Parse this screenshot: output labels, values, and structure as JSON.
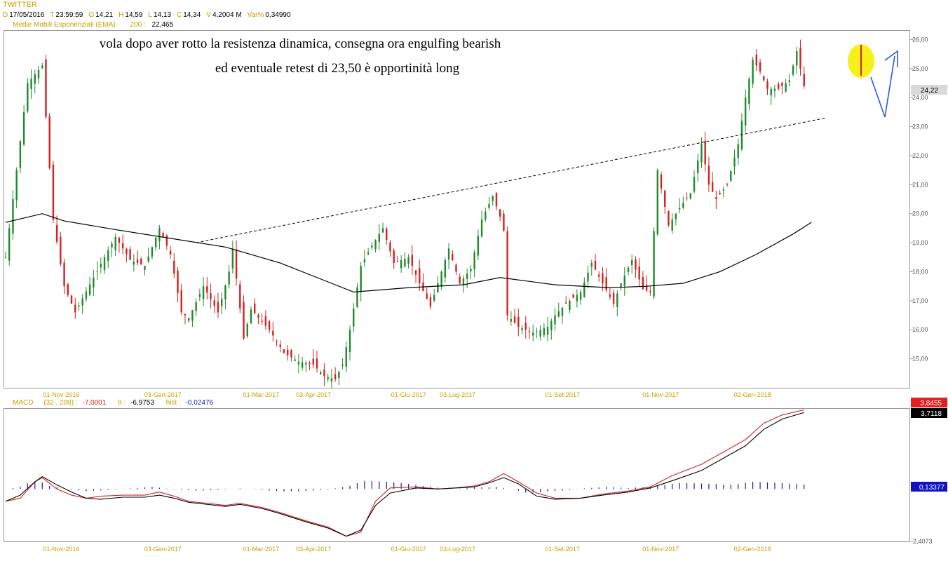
{
  "colors": {
    "background": "#ffffff",
    "candle_up": "#1f8a2e",
    "candle_down": "#d42020",
    "ema": "#000000",
    "trendline": "#000000",
    "header_label": "#c8a000",
    "value_text": "#000000",
    "macd_line": "#000000",
    "signal_line": "#d42020",
    "histogram": "#1a1aa6",
    "highlight_circle": "#f5f000",
    "arrow": "#2a5bd7",
    "price_badge_bg": "#d9d9d9",
    "macd_badge_red": "#e22020",
    "macd_badge_black": "#000000",
    "macd_badge_blue": "#1010c8"
  },
  "header": {
    "symbol": "TWITTER",
    "fields": [
      {
        "key": "D",
        "value": "17/05/2016"
      },
      {
        "key": "T",
        "value": "23:59:59"
      },
      {
        "key": "O",
        "value": "14,21"
      },
      {
        "key": "H",
        "value": "14,59"
      },
      {
        "key": "L",
        "value": "14,13"
      },
      {
        "key": "C",
        "value": "14,34"
      },
      {
        "key": "V",
        "value": "4,2004 M"
      },
      {
        "key": "Var%",
        "value": "0,34990"
      }
    ],
    "indicator_label": "Medie Mobili Esponenziali (EMA)",
    "indicator_period": "200 :",
    "indicator_value": "22,465"
  },
  "annotation": {
    "line1": "vola dopo aver rotto la resistenza dinamica, consegna ora engulfing bearish",
    "line2": "ed eventuale retest di 23,50 è opportinità long"
  },
  "chart_data": [
    {
      "type": "candlestick",
      "title": "",
      "y_ticks": [
        "15,00",
        "16,00",
        "17,00",
        "18,00",
        "19,00",
        "20,00",
        "21,00",
        "22,00",
        "23,00",
        "24,00",
        "25,00",
        "26,00"
      ],
      "ylim": [
        14.0,
        26.3
      ],
      "x_ticks": [
        "01-Nov-2016",
        "03-Gen-2017",
        "01-Mar-2017",
        "03-Apr-2017",
        "01-Giu-2017",
        "03-Lug-2017",
        "01-Set-2017",
        "01-Nov-2017",
        "02-Gen-2018"
      ],
      "last_price_label": "24,22",
      "price_path": [
        [
          0,
          18.5
        ],
        [
          6,
          24.5
        ],
        [
          10,
          25.1
        ],
        [
          13,
          19.8
        ],
        [
          16,
          17.5
        ],
        [
          19,
          16.6
        ],
        [
          24,
          17.8
        ],
        [
          30,
          19.2
        ],
        [
          34,
          18.4
        ],
        [
          38,
          18.2
        ],
        [
          42,
          19.5
        ],
        [
          45,
          18.6
        ],
        [
          48,
          16.6
        ],
        [
          50,
          16.4
        ],
        [
          54,
          17.5
        ],
        [
          58,
          16.6
        ],
        [
          61,
          18.0
        ],
        [
          62,
          18.8
        ],
        [
          65,
          15.7
        ],
        [
          67,
          16.7
        ],
        [
          72,
          16.0
        ],
        [
          76,
          15.2
        ],
        [
          80,
          14.9
        ],
        [
          84,
          14.8
        ],
        [
          87,
          14.4
        ],
        [
          90,
          14.3
        ],
        [
          92,
          14.8
        ],
        [
          94,
          16.0
        ],
        [
          97,
          18.2
        ],
        [
          100,
          18.9
        ],
        [
          103,
          19.5
        ],
        [
          106,
          18.3
        ],
        [
          110,
          18.5
        ],
        [
          113,
          17.6
        ],
        [
          116,
          16.8
        ],
        [
          119,
          18.0
        ],
        [
          121,
          18.8
        ],
        [
          124,
          17.6
        ],
        [
          127,
          18.1
        ],
        [
          130,
          19.8
        ],
        [
          133,
          20.6
        ],
        [
          135,
          19.9
        ],
        [
          136,
          19.4
        ],
        [
          137,
          16.5
        ],
        [
          140,
          16.1
        ],
        [
          144,
          15.9
        ],
        [
          148,
          16.1
        ],
        [
          150,
          16.5
        ],
        [
          153,
          16.9
        ],
        [
          157,
          17.3
        ],
        [
          160,
          18.3
        ],
        [
          163,
          17.6
        ],
        [
          166,
          16.9
        ],
        [
          168,
          17.6
        ],
        [
          171,
          18.4
        ],
        [
          174,
          17.4
        ],
        [
          176,
          17.3
        ],
        [
          178,
          21.5
        ],
        [
          181,
          19.6
        ],
        [
          184,
          20.2
        ],
        [
          187,
          20.7
        ],
        [
          190,
          22.4
        ],
        [
          192,
          21.0
        ],
        [
          194,
          20.5
        ],
        [
          197,
          21.0
        ],
        [
          200,
          22.4
        ],
        [
          202,
          24.0
        ],
        [
          204,
          25.3
        ],
        [
          206,
          24.9
        ],
        [
          208,
          24.3
        ],
        [
          211,
          24.3
        ],
        [
          214,
          24.6
        ],
        [
          216,
          25.6
        ],
        [
          218,
          24.4
        ]
      ],
      "ema200_path": [
        [
          0,
          19.7
        ],
        [
          5,
          19.85
        ],
        [
          10,
          20.0
        ],
        [
          16,
          19.75
        ],
        [
          30,
          19.45
        ],
        [
          45,
          19.15
        ],
        [
          60,
          18.85
        ],
        [
          75,
          18.3
        ],
        [
          85,
          17.8
        ],
        [
          95,
          17.3
        ],
        [
          110,
          17.45
        ],
        [
          125,
          17.55
        ],
        [
          135,
          17.8
        ],
        [
          150,
          17.55
        ],
        [
          165,
          17.45
        ],
        [
          175,
          17.5
        ],
        [
          185,
          17.6
        ],
        [
          195,
          18.0
        ],
        [
          205,
          18.6
        ],
        [
          215,
          19.3
        ],
        [
          220,
          19.7
        ]
      ],
      "trendline": [
        [
          52,
          19.0
        ],
        [
          224,
          23.3
        ]
      ]
    },
    {
      "type": "line",
      "title": "",
      "label": "MACD",
      "params": "(32 , 200) :",
      "macd_value": "-7,0001",
      "signal_period": "9 :",
      "signal_value": "-6,9753",
      "hist_label": "hist :",
      "hist_value": "-0,02476",
      "badge_red": "3,8455",
      "badge_black": "3,7118",
      "badge_blue": "0,13377",
      "y_tick_bottom": "-2,4073",
      "ylim": [
        -2.55,
        3.9
      ],
      "x_ticks": [
        "01-Nov-2016",
        "03-Gen-2017",
        "01-Mar-2017",
        "03-Apr-2017",
        "01-Giu-2017",
        "03-Lug-2017",
        "01-Set-2017",
        "01-Nov-2017",
        "02-Gen-2018"
      ],
      "macd_path": [
        [
          0,
          -0.6
        ],
        [
          4,
          -0.3
        ],
        [
          8,
          0.35
        ],
        [
          10,
          0.6
        ],
        [
          14,
          0.2
        ],
        [
          18,
          -0.15
        ],
        [
          22,
          -0.45
        ],
        [
          26,
          -0.5
        ],
        [
          32,
          -0.4
        ],
        [
          38,
          -0.4
        ],
        [
          42,
          -0.3
        ],
        [
          46,
          -0.45
        ],
        [
          50,
          -0.65
        ],
        [
          55,
          -0.75
        ],
        [
          60,
          -0.85
        ],
        [
          64,
          -0.75
        ],
        [
          70,
          -0.95
        ],
        [
          75,
          -1.2
        ],
        [
          82,
          -1.6
        ],
        [
          88,
          -1.9
        ],
        [
          93,
          -2.3
        ],
        [
          97,
          -2.0
        ],
        [
          101,
          -0.8
        ],
        [
          105,
          -0.2
        ],
        [
          112,
          0.05
        ],
        [
          118,
          0.0
        ],
        [
          123,
          0.05
        ],
        [
          128,
          0.1
        ],
        [
          132,
          0.3
        ],
        [
          136,
          0.55
        ],
        [
          140,
          0.25
        ],
        [
          145,
          -0.35
        ],
        [
          150,
          -0.5
        ],
        [
          157,
          -0.45
        ],
        [
          163,
          -0.3
        ],
        [
          170,
          -0.15
        ],
        [
          176,
          0.05
        ],
        [
          182,
          0.4
        ],
        [
          190,
          0.9
        ],
        [
          197,
          1.6
        ],
        [
          202,
          2.1
        ],
        [
          207,
          2.9
        ],
        [
          212,
          3.4
        ],
        [
          218,
          3.72
        ]
      ],
      "signal_path": [
        [
          0,
          -0.6
        ],
        [
          4,
          -0.45
        ],
        [
          8,
          0.35
        ],
        [
          10,
          0.55
        ],
        [
          14,
          0.0
        ],
        [
          18,
          -0.3
        ],
        [
          22,
          -0.45
        ],
        [
          26,
          -0.35
        ],
        [
          32,
          -0.3
        ],
        [
          38,
          -0.3
        ],
        [
          42,
          -0.15
        ],
        [
          46,
          -0.35
        ],
        [
          50,
          -0.6
        ],
        [
          55,
          -0.7
        ],
        [
          60,
          -0.8
        ],
        [
          64,
          -0.7
        ],
        [
          70,
          -0.9
        ],
        [
          75,
          -1.15
        ],
        [
          82,
          -1.55
        ],
        [
          88,
          -1.85
        ],
        [
          93,
          -2.3
        ],
        [
          97,
          -2.1
        ],
        [
          101,
          -0.6
        ],
        [
          105,
          0.05
        ],
        [
          112,
          0.1
        ],
        [
          118,
          0.0
        ],
        [
          123,
          0.05
        ],
        [
          128,
          0.15
        ],
        [
          132,
          0.35
        ],
        [
          136,
          0.75
        ],
        [
          140,
          0.35
        ],
        [
          145,
          -0.2
        ],
        [
          150,
          -0.45
        ],
        [
          157,
          -0.45
        ],
        [
          163,
          -0.25
        ],
        [
          170,
          -0.1
        ],
        [
          176,
          0.1
        ],
        [
          182,
          0.65
        ],
        [
          190,
          1.2
        ],
        [
          197,
          1.9
        ],
        [
          202,
          2.4
        ],
        [
          207,
          3.2
        ],
        [
          212,
          3.6
        ],
        [
          218,
          3.85
        ]
      ],
      "histogram_path": [
        [
          0,
          0.0
        ],
        [
          4,
          0.1
        ],
        [
          7,
          0.35
        ],
        [
          9,
          0.4
        ],
        [
          12,
          0.15
        ],
        [
          16,
          0.0
        ],
        [
          22,
          -0.1
        ],
        [
          28,
          -0.05
        ],
        [
          34,
          0.03
        ],
        [
          40,
          0.1
        ],
        [
          46,
          -0.02
        ],
        [
          52,
          -0.08
        ],
        [
          58,
          -0.05
        ],
        [
          64,
          0.03
        ],
        [
          70,
          -0.05
        ],
        [
          76,
          -0.12
        ],
        [
          82,
          -0.1
        ],
        [
          88,
          -0.03
        ],
        [
          94,
          0.15
        ],
        [
          98,
          0.4
        ],
        [
          104,
          0.35
        ],
        [
          110,
          0.25
        ],
        [
          116,
          0.1
        ],
        [
          122,
          0.0
        ],
        [
          128,
          0.08
        ],
        [
          134,
          0.1
        ],
        [
          138,
          0.0
        ],
        [
          142,
          -0.18
        ],
        [
          146,
          -0.15
        ],
        [
          152,
          -0.08
        ],
        [
          158,
          0.03
        ],
        [
          164,
          0.1
        ],
        [
          170,
          0.05
        ],
        [
          176,
          0.1
        ],
        [
          184,
          0.3
        ],
        [
          192,
          0.25
        ],
        [
          198,
          0.2
        ],
        [
          204,
          0.35
        ],
        [
          210,
          0.3
        ],
        [
          218,
          0.22
        ]
      ]
    }
  ]
}
